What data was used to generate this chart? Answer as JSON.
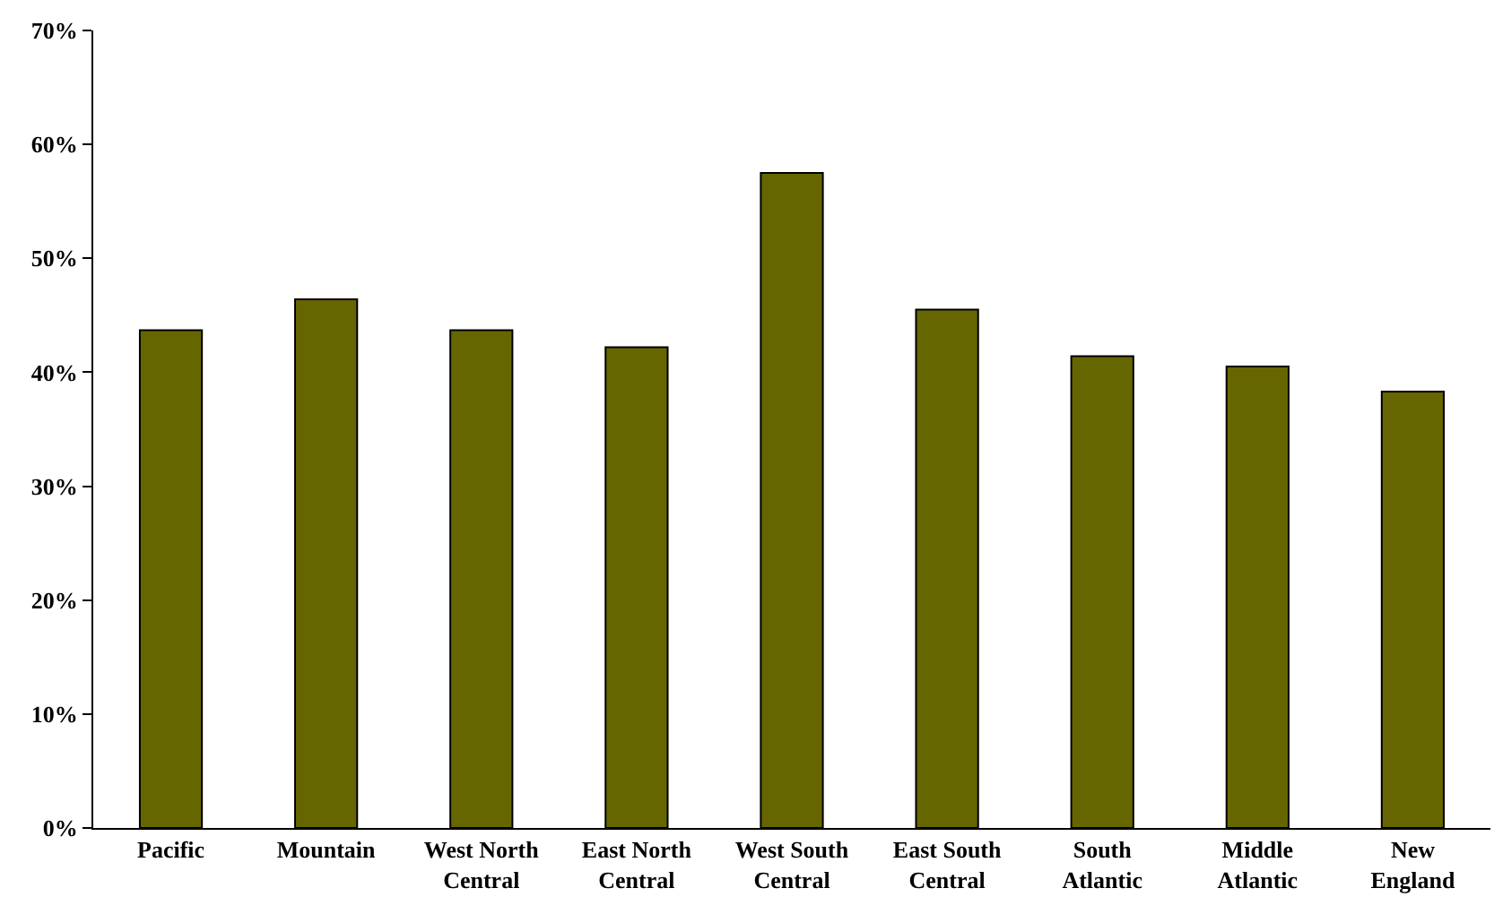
{
  "chart_data": {
    "type": "bar",
    "categories": [
      "Pacific",
      "Mountain",
      "West North Central",
      "East North Central",
      "West South Central",
      "East South Central",
      "South Atlantic",
      "Middle Atlantic",
      "New England"
    ],
    "values": [
      43.7,
      46.4,
      43.7,
      42.2,
      57.5,
      45.5,
      41.4,
      40.5,
      38.3
    ],
    "color": "#666600",
    "ylim": [
      0,
      70
    ],
    "yticks": [
      {
        "value": 0,
        "label": "0%"
      },
      {
        "value": 10,
        "label": "10%"
      },
      {
        "value": 20,
        "label": "20%"
      },
      {
        "value": 30,
        "label": "30%"
      },
      {
        "value": 40,
        "label": "40%"
      },
      {
        "value": 50,
        "label": "50%"
      },
      {
        "value": 60,
        "label": "60%"
      },
      {
        "value": 70,
        "label": "70%"
      }
    ],
    "grid": false,
    "legend": false
  }
}
